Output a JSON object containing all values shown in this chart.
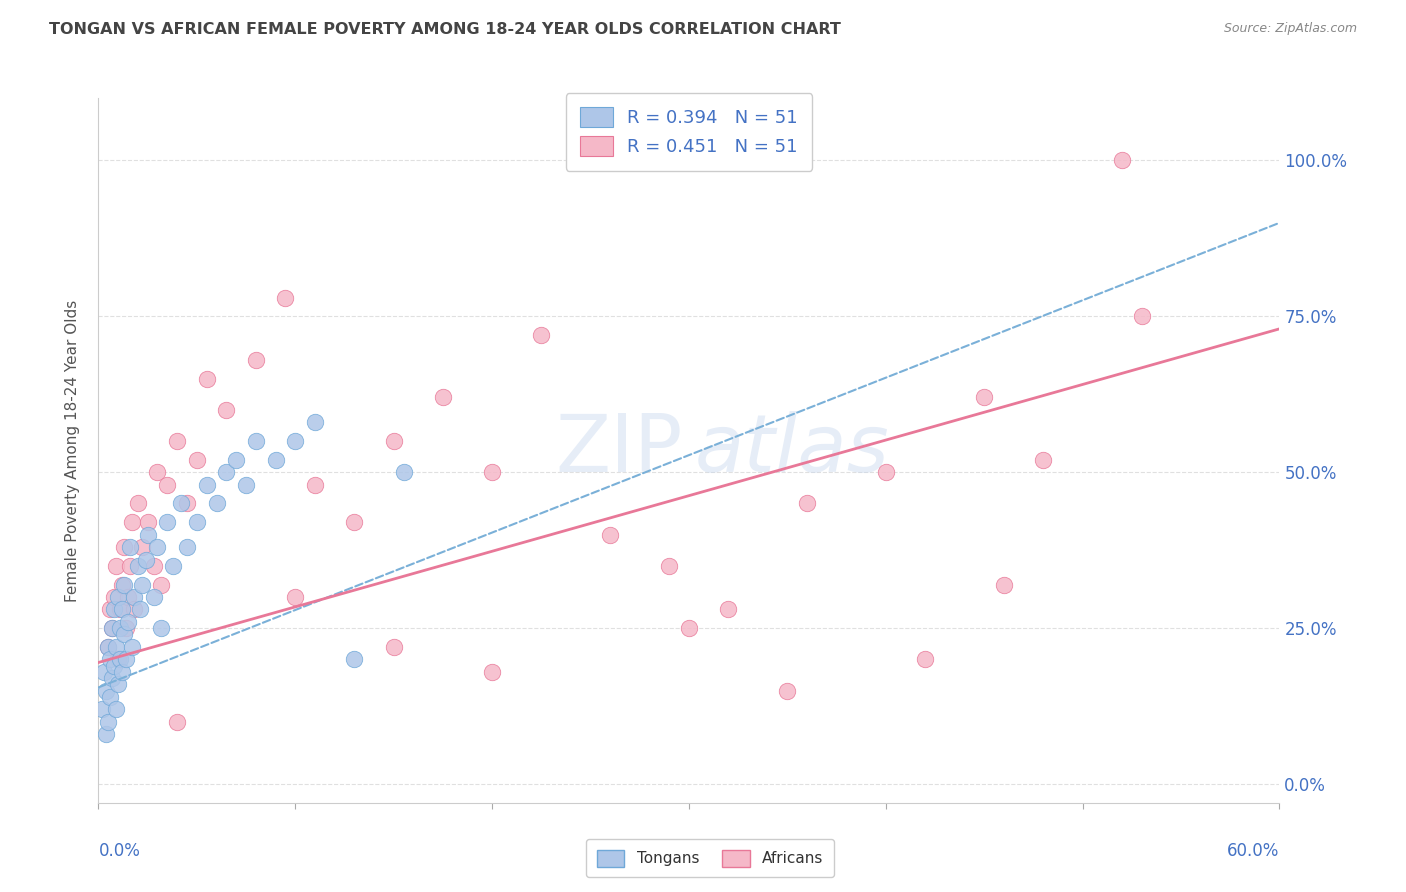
{
  "title": "TONGAN VS AFRICAN FEMALE POVERTY AMONG 18-24 YEAR OLDS CORRELATION CHART",
  "source": "Source: ZipAtlas.com",
  "ylabel": "Female Poverty Among 18-24 Year Olds",
  "xlim": [
    0.0,
    0.6
  ],
  "ylim": [
    -0.03,
    1.1
  ],
  "yticks": [
    0.0,
    0.25,
    0.5,
    0.75,
    1.0
  ],
  "ytick_labels": [
    "0.0%",
    "25.0%",
    "50.0%",
    "75.0%",
    "100.0%"
  ],
  "watermark": "ZIPat las",
  "legend_r_tongan": "R = 0.394",
  "legend_n_tongan": "N = 51",
  "legend_r_african": "R = 0.451",
  "legend_n_african": "N = 51",
  "color_tongan_face": "#aec6e8",
  "color_tongan_edge": "#6fa8d8",
  "color_african_face": "#f5b8c8",
  "color_african_edge": "#e87898",
  "color_line_tongan": "#7ab0d8",
  "color_line_african": "#e87898",
  "color_axis_labels": "#4472c4",
  "color_title": "#444444",
  "color_r_value": "#4472c4",
  "color_grid": "#e0e0e0",
  "background_color": "#ffffff",
  "tongan_x": [
    0.002,
    0.003,
    0.004,
    0.004,
    0.005,
    0.005,
    0.006,
    0.006,
    0.007,
    0.007,
    0.008,
    0.008,
    0.009,
    0.009,
    0.01,
    0.01,
    0.011,
    0.011,
    0.012,
    0.012,
    0.013,
    0.013,
    0.014,
    0.015,
    0.016,
    0.017,
    0.018,
    0.02,
    0.021,
    0.022,
    0.024,
    0.025,
    0.028,
    0.03,
    0.032,
    0.035,
    0.038,
    0.042,
    0.045,
    0.05,
    0.055,
    0.06,
    0.065,
    0.07,
    0.075,
    0.08,
    0.09,
    0.1,
    0.11,
    0.13,
    0.155
  ],
  "tongan_y": [
    0.12,
    0.18,
    0.08,
    0.15,
    0.22,
    0.1,
    0.2,
    0.14,
    0.25,
    0.17,
    0.19,
    0.28,
    0.22,
    0.12,
    0.3,
    0.16,
    0.25,
    0.2,
    0.28,
    0.18,
    0.24,
    0.32,
    0.2,
    0.26,
    0.38,
    0.22,
    0.3,
    0.35,
    0.28,
    0.32,
    0.36,
    0.4,
    0.3,
    0.38,
    0.25,
    0.42,
    0.35,
    0.45,
    0.38,
    0.42,
    0.48,
    0.45,
    0.5,
    0.52,
    0.48,
    0.55,
    0.52,
    0.55,
    0.58,
    0.2,
    0.5
  ],
  "african_x": [
    0.005,
    0.006,
    0.007,
    0.008,
    0.009,
    0.01,
    0.011,
    0.012,
    0.013,
    0.014,
    0.015,
    0.016,
    0.017,
    0.018,
    0.02,
    0.022,
    0.025,
    0.028,
    0.03,
    0.032,
    0.035,
    0.04,
    0.045,
    0.05,
    0.055,
    0.065,
    0.08,
    0.095,
    0.11,
    0.13,
    0.15,
    0.175,
    0.2,
    0.225,
    0.26,
    0.29,
    0.32,
    0.36,
    0.4,
    0.45,
    0.48,
    0.52,
    0.1,
    0.15,
    0.2,
    0.3,
    0.35,
    0.42,
    0.46,
    0.53,
    0.04
  ],
  "african_y": [
    0.22,
    0.28,
    0.25,
    0.3,
    0.35,
    0.2,
    0.28,
    0.32,
    0.38,
    0.25,
    0.3,
    0.35,
    0.42,
    0.28,
    0.45,
    0.38,
    0.42,
    0.35,
    0.5,
    0.32,
    0.48,
    0.55,
    0.45,
    0.52,
    0.65,
    0.6,
    0.68,
    0.78,
    0.48,
    0.42,
    0.55,
    0.62,
    0.5,
    0.72,
    0.4,
    0.35,
    0.28,
    0.45,
    0.5,
    0.62,
    0.52,
    1.0,
    0.3,
    0.22,
    0.18,
    0.25,
    0.15,
    0.2,
    0.32,
    0.75,
    0.1
  ],
  "line_tongan_x0": 0.0,
  "line_tongan_y0": 0.155,
  "line_tongan_x1": 0.6,
  "line_tongan_y1": 0.9,
  "line_african_x0": 0.0,
  "line_african_y0": 0.195,
  "line_african_x1": 0.6,
  "line_african_y1": 0.73
}
